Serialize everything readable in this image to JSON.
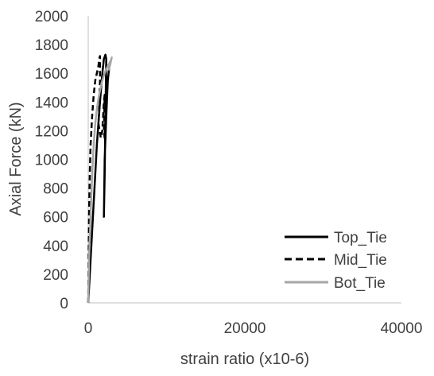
{
  "chart_data": {
    "type": "line",
    "title": "",
    "xlabel": "strain ratio (x10-6)",
    "ylabel": "Axial Force (kN)",
    "xlim": [
      0,
      40000
    ],
    "ylim": [
      0,
      2000
    ],
    "xticks": [
      0,
      20000,
      40000
    ],
    "yticks": [
      0,
      200,
      400,
      600,
      800,
      1000,
      1200,
      1400,
      1600,
      1800,
      2000
    ],
    "xtick_labels": [
      "0",
      "20000",
      "40000"
    ],
    "ytick_labels": [
      "0",
      "200",
      "400",
      "600",
      "800",
      "1000",
      "1200",
      "1400",
      "1600",
      "1800",
      "2000"
    ],
    "grid": false,
    "legend_position": "bottom-right",
    "series": [
      {
        "name": "Top_Tie",
        "color": "#000000",
        "style": "solid",
        "x": [
          0,
          300,
          700,
          1100,
          1500,
          1800,
          2000,
          2200,
          2300,
          2200,
          2100,
          2000,
          2100,
          2300,
          2500,
          2700,
          2800
        ],
        "y": [
          0,
          300,
          700,
          1100,
          1400,
          1600,
          1700,
          1730,
          1700,
          1300,
          900,
          600,
          1000,
          1300,
          1550,
          1650,
          1680
        ]
      },
      {
        "name": "Mid_Tie",
        "color": "#000000",
        "style": "dashed",
        "x": [
          0,
          50,
          100,
          200,
          300,
          500,
          700,
          900,
          1100,
          1300,
          1400,
          1500,
          1500,
          1400,
          1300,
          1600,
          1800,
          2000,
          2100,
          2000,
          2100,
          2300,
          2500
        ],
        "y": [
          0,
          300,
          600,
          900,
          1100,
          1300,
          1450,
          1550,
          1600,
          1650,
          1700,
          1720,
          1550,
          1350,
          1250,
          1150,
          1200,
          1400,
          1450,
          1200,
          1150,
          1400,
          1600
        ]
      },
      {
        "name": "Bot_Tie",
        "color": "#a6a6a6",
        "style": "solid",
        "x": [
          0,
          100,
          300,
          500,
          700,
          900,
          1100,
          1300,
          1500,
          1700,
          1900,
          2100,
          2300,
          2500,
          2700,
          2900,
          3000,
          2800,
          2600
        ],
        "y": [
          0,
          300,
          600,
          900,
          1100,
          1250,
          1350,
          1420,
          1480,
          1530,
          1570,
          1600,
          1630,
          1650,
          1670,
          1690,
          1710,
          1660,
          1620
        ]
      }
    ]
  }
}
